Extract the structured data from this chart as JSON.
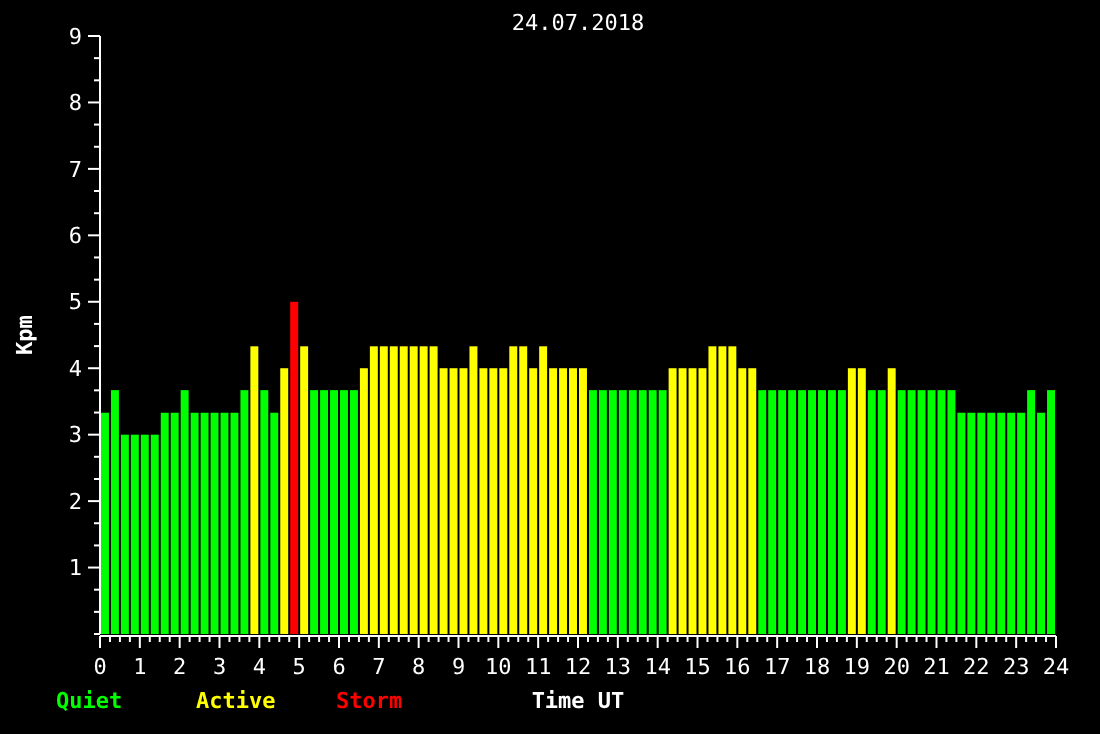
{
  "chart_data": {
    "type": "bar",
    "title": "24.07.2018",
    "xlabel": "Time UT",
    "ylabel": "Kpm",
    "legend": "bottom left",
    "grid": false,
    "xlim": [
      0,
      24
    ],
    "ylim": [
      0,
      9
    ],
    "x": [
      0.125,
      0.375,
      0.625,
      0.875,
      1.125,
      1.375,
      1.625,
      1.875,
      2.125,
      2.375,
      2.625,
      2.875,
      3.125,
      3.375,
      3.625,
      3.875,
      4.125,
      4.375,
      4.625,
      4.875,
      5.125,
      5.375,
      5.625,
      5.875,
      6.125,
      6.375,
      6.625,
      6.875,
      7.125,
      7.375,
      7.625,
      7.875,
      8.125,
      8.375,
      8.625,
      8.875,
      9.125,
      9.375,
      9.625,
      9.875,
      10.125,
      10.375,
      10.625,
      10.875,
      11.125,
      11.375,
      11.625,
      11.875,
      12.125,
      12.375,
      12.625,
      12.875,
      13.125,
      13.375,
      13.625,
      13.875,
      14.125,
      14.375,
      14.625,
      14.875,
      15.125,
      15.375,
      15.625,
      15.875,
      16.125,
      16.375,
      16.625,
      16.875,
      17.125,
      17.375,
      17.625,
      17.875,
      18.125,
      18.375,
      18.625,
      18.875,
      19.125,
      19.375,
      19.625,
      19.875,
      20.125,
      20.375,
      20.625,
      20.875,
      21.125,
      21.375,
      21.625,
      21.875,
      22.125,
      22.375,
      22.625,
      22.875,
      23.125,
      23.375,
      23.625,
      23.875
    ],
    "xticks": [
      0,
      {
        "value": 0.25,
        "label": null
      },
      {
        "value": 0.5,
        "label": null
      },
      {
        "value": 0.75,
        "label": null
      },
      1,
      {
        "value": 1.25,
        "label": null
      },
      {
        "value": 1.5,
        "label": null
      },
      {
        "value": 1.75,
        "label": null
      },
      2,
      {
        "value": 2.25,
        "label": null
      },
      {
        "value": 2.5,
        "label": null
      },
      {
        "value": 2.75,
        "label": null
      },
      3,
      {
        "value": 3.25,
        "label": null
      },
      {
        "value": 3.5,
        "label": null
      },
      {
        "value": 3.75,
        "label": null
      },
      4,
      {
        "value": 4.25,
        "label": null
      },
      {
        "value": 4.5,
        "label": null
      },
      {
        "value": 4.75,
        "label": null
      },
      5,
      {
        "value": 5.25,
        "label": null
      },
      {
        "value": 5.5,
        "label": null
      },
      {
        "value": 5.75,
        "label": null
      },
      6,
      {
        "value": 6.25,
        "label": null
      },
      {
        "value": 6.5,
        "label": null
      },
      {
        "value": 6.75,
        "label": null
      },
      7,
      {
        "value": 7.25,
        "label": null
      },
      {
        "value": 7.5,
        "label": null
      },
      {
        "value": 7.75,
        "label": null
      },
      8,
      {
        "value": 8.25,
        "label": null
      },
      {
        "value": 8.5,
        "label": null
      },
      {
        "value": 8.75,
        "label": null
      },
      9,
      {
        "value": 9.25,
        "label": null
      },
      {
        "value": 9.5,
        "label": null
      },
      {
        "value": 9.75,
        "label": null
      },
      10,
      {
        "value": 10.25,
        "label": null
      },
      {
        "value": 10.5,
        "label": null
      },
      {
        "value": 10.75,
        "label": null
      },
      11,
      {
        "value": 11.25,
        "label": null
      },
      {
        "value": 11.5,
        "label": null
      },
      {
        "value": 11.75,
        "label": null
      },
      12,
      {
        "value": 12.25,
        "label": null
      },
      {
        "value": 12.5,
        "label": null
      },
      {
        "value": 12.75,
        "label": null
      },
      13,
      {
        "value": 13.25,
        "label": null
      },
      {
        "value": 13.5,
        "label": null
      },
      {
        "value": 13.75,
        "label": null
      },
      14,
      {
        "value": 14.25,
        "label": null
      },
      {
        "value": 14.5,
        "label": null
      },
      {
        "value": 14.75,
        "label": null
      },
      15,
      {
        "value": 15.25,
        "label": null
      },
      {
        "value": 15.5,
        "label": null
      },
      {
        "value": 15.75,
        "label": null
      },
      16,
      {
        "value": 16.25,
        "label": null
      },
      {
        "value": 16.5,
        "label": null
      },
      {
        "value": 16.75,
        "label": null
      },
      17,
      {
        "value": 17.25,
        "label": null
      },
      {
        "value": 17.5,
        "label": null
      },
      {
        "value": 17.75,
        "label": null
      },
      18,
      {
        "value": 18.25,
        "label": null
      },
      {
        "value": 18.5,
        "label": null
      },
      {
        "value": 18.75,
        "label": null
      },
      19,
      {
        "value": 19.25,
        "label": null
      },
      {
        "value": 19.5,
        "label": null
      },
      {
        "value": 19.75,
        "label": null
      },
      20,
      {
        "value": 20.25,
        "label": null
      },
      {
        "value": 20.5,
        "label": null
      },
      {
        "value": 20.75,
        "label": null
      },
      21,
      {
        "value": 21.25,
        "label": null
      },
      {
        "value": 21.5,
        "label": null
      },
      {
        "value": 21.75,
        "label": null
      },
      22,
      {
        "value": 22.25,
        "label": null
      },
      {
        "value": 22.5,
        "label": null
      },
      {
        "value": 22.75,
        "label": null
      },
      23,
      {
        "value": 23.25,
        "label": null
      },
      {
        "value": 23.5,
        "label": null
      },
      {
        "value": 23.75,
        "label": null
      },
      24
    ],
    "yticks": [
      {
        "value": 0,
        "label": null
      },
      {
        "value": 0.333,
        "label": null
      },
      {
        "value": 0.667,
        "label": null
      },
      1,
      {
        "value": 1.333,
        "label": null
      },
      {
        "value": 1.667,
        "label": null
      },
      2,
      {
        "value": 2.333,
        "label": null
      },
      {
        "value": 2.667,
        "label": null
      },
      3,
      {
        "value": 3.333,
        "label": null
      },
      {
        "value": 3.667,
        "label": null
      },
      4,
      {
        "value": 4.333,
        "label": null
      },
      {
        "value": 4.667,
        "label": null
      },
      5,
      {
        "value": 5.333,
        "label": null
      },
      {
        "value": 5.667,
        "label": null
      },
      6,
      {
        "value": 6.333,
        "label": null
      },
      {
        "value": 6.667,
        "label": null
      },
      7,
      {
        "value": 7.333,
        "label": null
      },
      {
        "value": 7.667,
        "label": null
      },
      8,
      {
        "value": 8.333,
        "label": null
      },
      {
        "value": 8.667,
        "label": null
      },
      9
    ],
    "series": [
      {
        "name": "Quiet",
        "color": "#00ff00",
        "values": [
          3.33,
          3.67,
          3,
          3,
          3,
          3,
          3.33,
          3.33,
          3.67,
          3.33,
          3.33,
          3.33,
          3.33,
          3.33,
          3.67,
          null,
          3.67,
          3.33,
          null,
          null,
          null,
          3.67,
          3.67,
          3.67,
          3.67,
          3.67,
          null,
          null,
          null,
          null,
          null,
          null,
          null,
          null,
          null,
          null,
          null,
          null,
          null,
          null,
          null,
          null,
          null,
          null,
          null,
          null,
          null,
          null,
          null,
          3.67,
          3.67,
          3.67,
          3.67,
          3.67,
          3.67,
          3.67,
          3.67,
          null,
          null,
          null,
          null,
          null,
          null,
          null,
          null,
          null,
          3.67,
          3.67,
          3.67,
          3.67,
          3.67,
          3.67,
          3.67,
          3.67,
          3.67,
          null,
          null,
          3.67,
          3.67,
          null,
          3.67,
          3.67,
          3.67,
          3.67,
          3.67,
          3.67,
          3.33,
          3.33,
          3.33,
          3.33,
          3.33,
          3.33,
          3.33,
          3.67,
          3.33,
          3.67
        ]
      },
      {
        "name": "Active",
        "color": "#ffff00",
        "values": [
          null,
          null,
          null,
          null,
          null,
          null,
          null,
          null,
          null,
          null,
          null,
          null,
          null,
          null,
          null,
          4.33,
          null,
          null,
          4,
          null,
          4.33,
          null,
          null,
          null,
          null,
          null,
          4,
          4.33,
          4.33,
          4.33,
          4.33,
          4.33,
          4.33,
          4.33,
          4,
          4,
          4,
          4.33,
          4,
          4,
          4,
          4.33,
          4.33,
          4,
          4.33,
          4,
          4,
          4,
          4,
          null,
          null,
          null,
          null,
          null,
          null,
          null,
          null,
          4,
          4,
          4,
          4,
          4.33,
          4.33,
          4.33,
          4,
          4,
          null,
          null,
          null,
          null,
          null,
          null,
          null,
          null,
          null,
          4,
          4,
          null,
          null,
          4,
          null,
          null,
          null,
          null,
          null,
          null,
          null,
          null,
          null,
          null,
          null,
          null,
          null,
          null,
          null,
          null
        ]
      },
      {
        "name": "Storm",
        "color": "#ff0000",
        "values": [
          null,
          null,
          null,
          null,
          null,
          null,
          null,
          null,
          null,
          null,
          null,
          null,
          null,
          null,
          null,
          null,
          null,
          null,
          null,
          5,
          null,
          null,
          null,
          null,
          null,
          null,
          null,
          null,
          null,
          null,
          null,
          null,
          null,
          null,
          null,
          null,
          null,
          null,
          null,
          null,
          null,
          null,
          null,
          null,
          null,
          null,
          null,
          null,
          null,
          null,
          null,
          null,
          null,
          null,
          null,
          null,
          null,
          null,
          null,
          null,
          null,
          null,
          null,
          null,
          null,
          null,
          null,
          null,
          null,
          null,
          null,
          null,
          null,
          null,
          null,
          null,
          null,
          null,
          null,
          null,
          null,
          null,
          null,
          null,
          null,
          null,
          null,
          null,
          null,
          null,
          null,
          null,
          null,
          null,
          null,
          null
        ]
      }
    ]
  }
}
